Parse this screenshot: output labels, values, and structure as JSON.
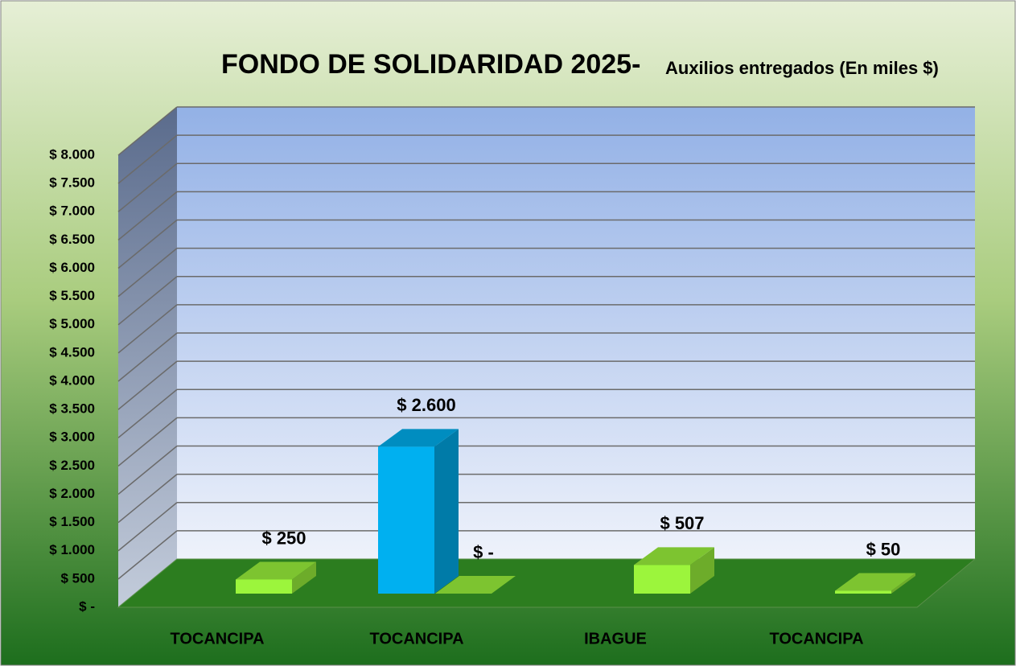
{
  "chart_data": {
    "type": "bar3d",
    "title": "FONDO DE SOLIDARIDAD 2025-",
    "subtitle": "Auxilios entregados (En miles $)",
    "categories": [
      "TOCANCIPA",
      "TOCANCIPA",
      "IBAGUE",
      "TOCANCIPA"
    ],
    "series": [
      {
        "color": "#00b0f0",
        "values": [
          null,
          2600,
          null,
          null
        ],
        "value_labels": [
          null,
          "$ 2.600",
          null,
          null
        ]
      },
      {
        "color": "#9cf53c",
        "values": [
          250,
          0,
          507,
          50
        ],
        "value_labels": [
          "$ 250",
          "$ -",
          "$ 507",
          "$ 50"
        ]
      }
    ],
    "ylim": [
      0,
      8000
    ],
    "yticks": [
      {
        "value": 0,
        "label": "$ -"
      },
      {
        "value": 500,
        "label": "$ 500"
      },
      {
        "value": 1000,
        "label": "$ 1.000"
      },
      {
        "value": 1500,
        "label": "$ 1.500"
      },
      {
        "value": 2000,
        "label": "$ 2.000"
      },
      {
        "value": 2500,
        "label": "$ 2.500"
      },
      {
        "value": 3000,
        "label": "$ 3.000"
      },
      {
        "value": 3500,
        "label": "$ 3.500"
      },
      {
        "value": 4000,
        "label": "$ 4.000"
      },
      {
        "value": 4500,
        "label": "$ 4.500"
      },
      {
        "value": 5000,
        "label": "$ 5.000"
      },
      {
        "value": 5500,
        "label": "$ 5.500"
      },
      {
        "value": 6000,
        "label": "$ 6.000"
      },
      {
        "value": 6500,
        "label": "$ 6.500"
      },
      {
        "value": 7000,
        "label": "$ 7.000"
      },
      {
        "value": 7500,
        "label": "$ 7.500"
      },
      {
        "value": 8000,
        "label": "$ 8.000"
      }
    ],
    "grid": true
  }
}
